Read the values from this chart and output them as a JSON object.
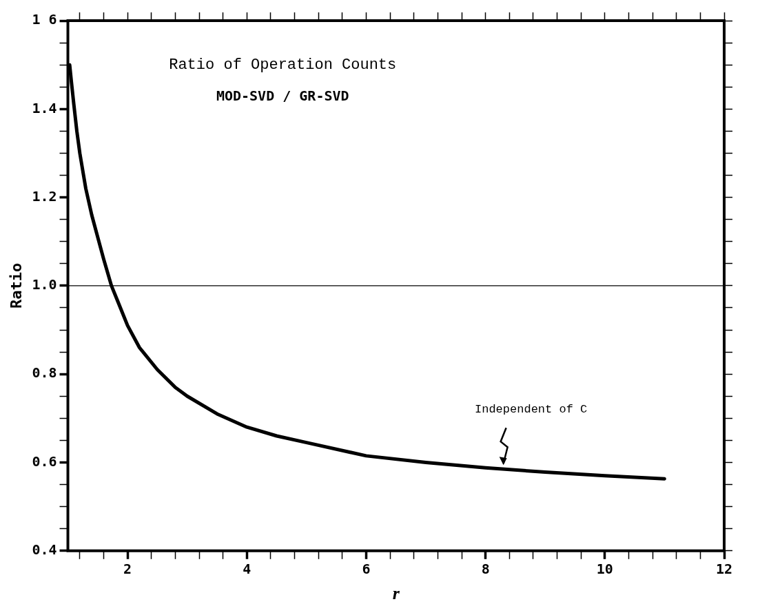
{
  "chart_data": {
    "type": "line",
    "title": "Ratio of Operation Counts",
    "subtitle": "MOD-SVD / GR-SVD",
    "xlabel": "r",
    "ylabel": "Ratio",
    "x": [
      1.03,
      1.06,
      1.1,
      1.15,
      1.2,
      1.25,
      1.3,
      1.4,
      1.5,
      1.6,
      1.73,
      1.85,
      2.0,
      2.2,
      2.5,
      2.8,
      3.0,
      3.5,
      4.0,
      4.5,
      5.0,
      6.0,
      7.0,
      8.0,
      9.0,
      10.0,
      11.0
    ],
    "series": [
      {
        "color": "#000000",
        "values": [
          1.5,
          1.46,
          1.41,
          1.35,
          1.3,
          1.26,
          1.22,
          1.16,
          1.11,
          1.06,
          1.0,
          0.96,
          0.91,
          0.86,
          0.81,
          0.77,
          0.75,
          0.71,
          0.68,
          0.66,
          0.645,
          0.615,
          0.6,
          0.588,
          0.578,
          0.57,
          0.563
        ]
      }
    ],
    "xlim": [
      1,
      12
    ],
    "xticks": [
      {
        "value": 1.2,
        "label": null
      },
      {
        "value": 1.6,
        "label": null
      },
      2,
      {
        "value": 2.4,
        "label": null
      },
      {
        "value": 2.8,
        "label": null
      },
      {
        "value": 3.2,
        "label": null
      },
      {
        "value": 3.6,
        "label": null
      },
      4,
      {
        "value": 4.4,
        "label": null
      },
      {
        "value": 4.8,
        "label": null
      },
      {
        "value": 5.2,
        "label": null
      },
      {
        "value": 5.6,
        "label": null
      },
      6,
      {
        "value": 6.4,
        "label": null
      },
      {
        "value": 6.8,
        "label": null
      },
      {
        "value": 7.2,
        "label": null
      },
      {
        "value": 7.6,
        "label": null
      },
      8,
      {
        "value": 8.4,
        "label": null
      },
      {
        "value": 8.8,
        "label": null
      },
      {
        "value": 9.2,
        "label": null
      },
      {
        "value": 9.6,
        "label": null
      },
      10,
      {
        "value": 10.4,
        "label": null
      },
      {
        "value": 10.8,
        "label": null
      },
      {
        "value": 11.2,
        "label": null
      },
      {
        "value": 11.6,
        "label": null
      },
      12
    ],
    "ylim": [
      0.4,
      1.6
    ],
    "yticks": [
      {
        "value": 0.4,
        "label": "0.4"
      },
      {
        "value": 0.45,
        "label": null
      },
      {
        "value": 0.5,
        "label": null
      },
      {
        "value": 0.55,
        "label": null
      },
      {
        "value": 0.6,
        "label": "0.6"
      },
      {
        "value": 0.65,
        "label": null
      },
      {
        "value": 0.7,
        "label": null
      },
      {
        "value": 0.75,
        "label": null
      },
      {
        "value": 0.8,
        "label": "0.8"
      },
      {
        "value": 0.85,
        "label": null
      },
      {
        "value": 0.9,
        "label": null
      },
      {
        "value": 0.95,
        "label": null
      },
      {
        "value": 1.0,
        "label": "1.0"
      },
      {
        "value": 1.05,
        "label": null
      },
      {
        "value": 1.1,
        "label": null
      },
      {
        "value": 1.15,
        "label": null
      },
      {
        "value": 1.2,
        "label": "1.2"
      },
      {
        "value": 1.25,
        "label": null
      },
      {
        "value": 1.3,
        "label": null
      },
      {
        "value": 1.35,
        "label": null
      },
      {
        "value": 1.4,
        "label": "1.4"
      },
      {
        "value": 1.45,
        "label": null
      },
      {
        "value": 1.5,
        "label": null
      },
      {
        "value": 1.55,
        "label": null
      },
      {
        "value": 1.6,
        "label": "1 6"
      }
    ],
    "ref_lines": [
      {
        "axis": "y",
        "value": 1.0,
        "color": "#000000"
      }
    ],
    "annotations": [
      {
        "text": "Independent of C",
        "x": 8.3,
        "y": 0.588
      }
    ],
    "marker": "none",
    "line_style": "solid"
  }
}
